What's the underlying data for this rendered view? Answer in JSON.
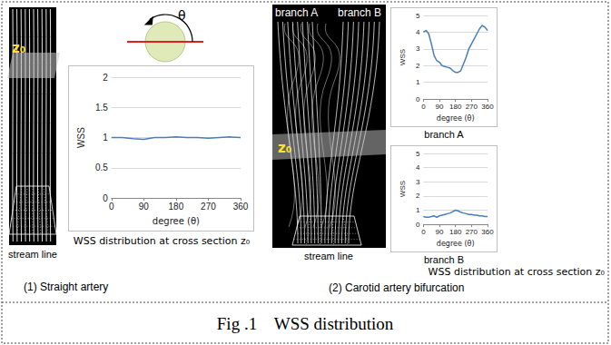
{
  "caption": "Fig .1    WSS distribution",
  "panels": [
    {
      "label": "(1) Straight artery",
      "image_label": "stream line",
      "plane_label": "z₀",
      "diagram_label": "θ",
      "chart_caption": "WSS distribution at cross section z₀"
    },
    {
      "label": "(2) Carotid artery bifurcation",
      "image_label": "stream line",
      "plane_label": "z₀",
      "branch_labels": [
        "branch A",
        "branch B"
      ],
      "chart_caption": "WSS distribution at cross section z₀"
    }
  ],
  "chart_data": [
    {
      "type": "line",
      "xlabel": "degree (θ)",
      "ylabel": "WSS",
      "x": [
        0,
        30,
        60,
        90,
        120,
        150,
        180,
        210,
        240,
        270,
        300,
        330,
        360
      ],
      "values": [
        1.0,
        1.0,
        0.98,
        0.97,
        1.0,
        1.0,
        1.01,
        1.0,
        1.0,
        0.99,
        1.0,
        1.01,
        1.0
      ],
      "color": "#4a7ebb",
      "xlim": [
        0,
        360
      ],
      "xticks": [
        0,
        90,
        180,
        270,
        360
      ],
      "ylim": [
        0,
        2
      ],
      "yticks": [
        0,
        0.5,
        1,
        1.5,
        2
      ],
      "grid": true
    },
    {
      "type": "line",
      "title": "branch A",
      "xlabel": "degree (θ)",
      "ylabel": "WSS",
      "x": [
        0,
        15,
        30,
        45,
        60,
        75,
        90,
        105,
        120,
        135,
        150,
        165,
        180,
        195,
        210,
        225,
        240,
        255,
        270,
        285,
        300,
        315,
        330,
        345,
        360
      ],
      "values": [
        4.0,
        4.1,
        3.9,
        3.3,
        2.6,
        2.3,
        2.2,
        2.0,
        1.95,
        1.9,
        1.85,
        1.7,
        1.6,
        1.6,
        1.7,
        2.1,
        2.5,
        3.0,
        3.3,
        3.6,
        3.9,
        4.2,
        4.4,
        4.3,
        4.1
      ],
      "color": "#4a7ebb",
      "xlim": [
        0,
        360
      ],
      "xticks": [
        0,
        90,
        180,
        270,
        360
      ],
      "ylim": [
        0,
        5
      ],
      "yticks": [
        0,
        1,
        2,
        3,
        4,
        5
      ],
      "grid": true
    },
    {
      "type": "line",
      "title": "branch B",
      "xlabel": "degree (θ)",
      "ylabel": "WSS",
      "x": [
        0,
        15,
        30,
        45,
        60,
        75,
        90,
        105,
        120,
        135,
        150,
        165,
        180,
        195,
        210,
        225,
        240,
        255,
        270,
        285,
        300,
        315,
        330,
        345,
        360
      ],
      "values": [
        0.55,
        0.5,
        0.5,
        0.55,
        0.6,
        0.5,
        0.6,
        0.65,
        0.7,
        0.75,
        0.8,
        0.9,
        1.0,
        0.95,
        0.85,
        0.8,
        0.75,
        0.7,
        0.7,
        0.65,
        0.65,
        0.6,
        0.6,
        0.55,
        0.55
      ],
      "color": "#4a7ebb",
      "xlim": [
        0,
        360
      ],
      "xticks": [
        0,
        90,
        180,
        270,
        360
      ],
      "ylim": [
        0,
        5
      ],
      "yticks": [
        0,
        1,
        2,
        3,
        4,
        5
      ],
      "grid": true
    }
  ]
}
